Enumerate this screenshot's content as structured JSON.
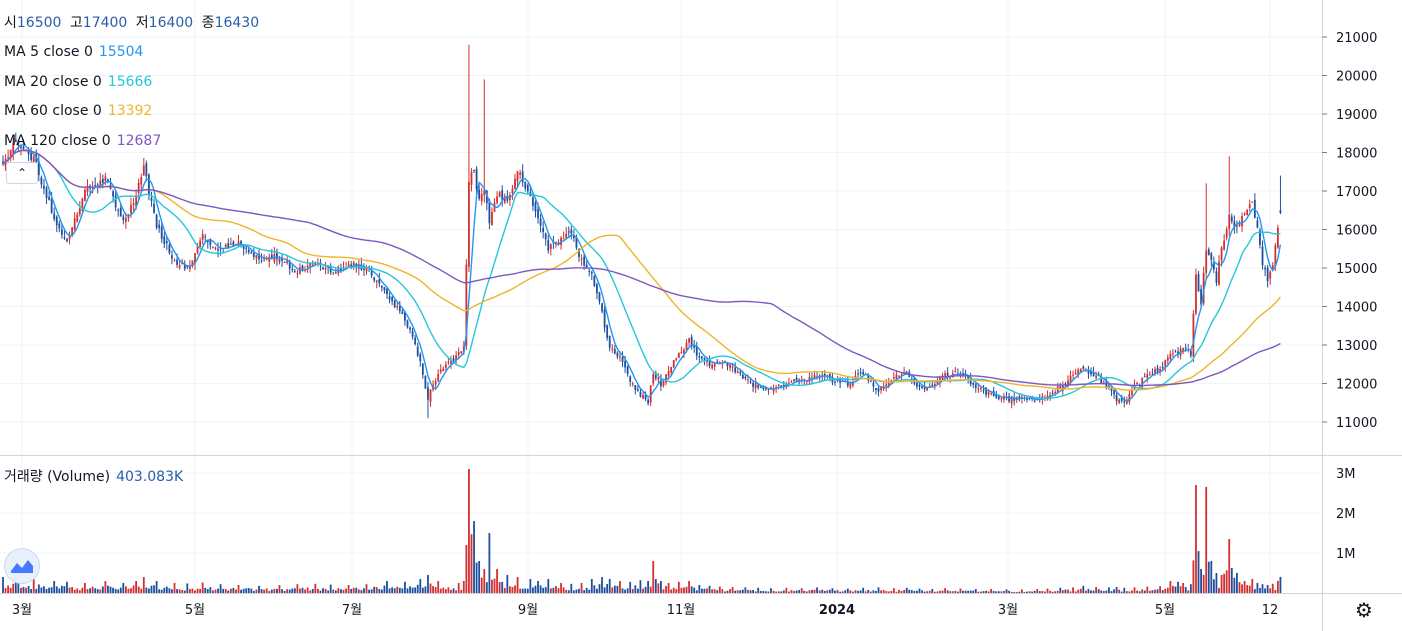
{
  "ohlc": {
    "open_label": "시",
    "open": "16500",
    "high_label": "고",
    "high": "17400",
    "low_label": "저",
    "low": "16400",
    "close_label": "종",
    "close": "16430"
  },
  "indicators": [
    {
      "label": "MA 5 close 0",
      "value": "15504",
      "color": "#2196f3"
    },
    {
      "label": "MA 20 close 0",
      "value": "15666",
      "color": "#26c6da"
    },
    {
      "label": "MA 60 close 0",
      "value": "13392",
      "color": "#f0b429"
    },
    {
      "label": "MA 120 close 0",
      "value": "12687",
      "color": "#7e57c2"
    }
  ],
  "volume_legend": {
    "label": "거래량 (Volume)",
    "value": "403.083K"
  },
  "colors": {
    "up": "#d32f2f",
    "down": "#1e4f9c",
    "grid": "#f0f3fa",
    "axis_text": "#131722"
  },
  "icons": [
    "chevron-up-icon",
    "tradingview-logo-icon",
    "gear-icon"
  ],
  "chart_data": {
    "type": "candlestick",
    "price_axis": {
      "ticks": [
        11000,
        12000,
        13000,
        14000,
        15000,
        16000,
        17000,
        18000,
        19000,
        20000,
        21000
      ]
    },
    "volume_axis": {
      "ticks": [
        "1M",
        "2M",
        "3M"
      ],
      "tick_values": [
        1000000,
        2000000,
        3000000
      ]
    },
    "time_axis": {
      "labels": [
        "3월",
        "5월",
        "7월",
        "9월",
        "11월",
        "2024",
        "3월",
        "5월",
        "12"
      ]
    },
    "keypoints": [
      [
        0,
        17700,
        400000
      ],
      [
        5,
        18300,
        500000
      ],
      [
        12,
        17800,
        350000
      ],
      [
        20,
        16300,
        300000
      ],
      [
        25,
        15700,
        280000
      ],
      [
        32,
        17000,
        250000
      ],
      [
        40,
        17300,
        300000
      ],
      [
        47,
        16200,
        250000
      ],
      [
        52,
        16900,
        300000
      ],
      [
        55,
        17600,
        400000
      ],
      [
        60,
        16100,
        300000
      ],
      [
        67,
        15200,
        250000
      ],
      [
        72,
        15000,
        240000
      ],
      [
        78,
        15800,
        260000
      ],
      [
        85,
        15500,
        220000
      ],
      [
        92,
        15600,
        200000
      ],
      [
        100,
        15200,
        180000
      ],
      [
        108,
        15300,
        200000
      ],
      [
        115,
        14900,
        220000
      ],
      [
        122,
        15200,
        230000
      ],
      [
        128,
        14900,
        210000
      ],
      [
        135,
        15100,
        200000
      ],
      [
        142,
        15000,
        220000
      ],
      [
        150,
        14300,
        300000
      ],
      [
        157,
        13700,
        280000
      ],
      [
        163,
        12600,
        350000
      ],
      [
        166,
        11600,
        450000
      ],
      [
        170,
        12300,
        300000
      ],
      [
        178,
        12800,
        250000
      ],
      [
        180,
        13000,
        300000
      ],
      [
        181,
        15100,
        1200000
      ],
      [
        182,
        17200,
        3100000
      ],
      [
        184,
        17600,
        1800000
      ],
      [
        186,
        16700,
        800000
      ],
      [
        188,
        17000,
        600000
      ],
      [
        190,
        16200,
        1500000
      ],
      [
        193,
        16900,
        600000
      ],
      [
        197,
        16800,
        450000
      ],
      [
        201,
        17500,
        400000
      ],
      [
        206,
        16900,
        350000
      ],
      [
        209,
        16300,
        300000
      ],
      [
        213,
        15500,
        350000
      ],
      [
        218,
        15800,
        250000
      ],
      [
        222,
        15900,
        230000
      ],
      [
        226,
        15200,
        250000
      ],
      [
        230,
        14800,
        350000
      ],
      [
        234,
        13800,
        400000
      ],
      [
        237,
        12900,
        350000
      ],
      [
        241,
        12700,
        300000
      ],
      [
        245,
        12100,
        280000
      ],
      [
        249,
        11700,
        320000
      ],
      [
        252,
        11500,
        300000
      ],
      [
        254,
        12300,
        800000
      ],
      [
        257,
        12000,
        300000
      ],
      [
        260,
        12400,
        250000
      ],
      [
        264,
        12800,
        280000
      ],
      [
        268,
        13100,
        300000
      ],
      [
        272,
        12700,
        200000
      ],
      [
        276,
        12500,
        180000
      ],
      [
        280,
        12600,
        160000
      ],
      [
        285,
        12400,
        150000
      ],
      [
        290,
        12100,
        140000
      ],
      [
        295,
        11900,
        130000
      ],
      [
        300,
        11900,
        120000
      ],
      [
        306,
        12000,
        130000
      ],
      [
        312,
        12100,
        120000
      ],
      [
        318,
        12200,
        140000
      ],
      [
        324,
        12100,
        120000
      ],
      [
        330,
        12000,
        110000
      ],
      [
        336,
        12300,
        130000
      ],
      [
        342,
        11800,
        140000
      ],
      [
        348,
        12200,
        120000
      ],
      [
        353,
        12300,
        130000
      ],
      [
        358,
        11900,
        110000
      ],
      [
        363,
        11900,
        100000
      ],
      [
        368,
        12200,
        120000
      ],
      [
        374,
        12300,
        110000
      ],
      [
        380,
        11900,
        100000
      ],
      [
        386,
        11700,
        100000
      ],
      [
        392,
        11600,
        90000
      ],
      [
        398,
        11600,
        90000
      ],
      [
        404,
        11600,
        100000
      ],
      [
        408,
        11700,
        110000
      ],
      [
        413,
        11900,
        130000
      ],
      [
        418,
        12200,
        140000
      ],
      [
        422,
        12400,
        180000
      ],
      [
        427,
        12200,
        150000
      ],
      [
        432,
        11900,
        140000
      ],
      [
        435,
        11600,
        150000
      ],
      [
        438,
        11500,
        130000
      ],
      [
        442,
        11900,
        140000
      ],
      [
        447,
        12200,
        160000
      ],
      [
        452,
        12400,
        170000
      ],
      [
        456,
        12700,
        300000
      ],
      [
        459,
        12800,
        280000
      ],
      [
        461,
        13000,
        250000
      ],
      [
        464,
        12800,
        220000
      ],
      [
        466,
        14800,
        2700000
      ],
      [
        468,
        14100,
        600000
      ],
      [
        470,
        15500,
        2650000
      ],
      [
        472,
        15300,
        800000
      ],
      [
        474,
        14700,
        500000
      ],
      [
        476,
        15500,
        450000
      ],
      [
        479,
        16300,
        1350000
      ],
      [
        482,
        16000,
        500000
      ],
      [
        485,
        16500,
        300000
      ],
      [
        488,
        16800,
        350000
      ],
      [
        490,
        16000,
        250000
      ],
      [
        492,
        15100,
        220000
      ],
      [
        494,
        14700,
        200000
      ],
      [
        496,
        15000,
        230000
      ],
      [
        498,
        16000,
        300000
      ],
      [
        499,
        16430,
        403083
      ]
    ],
    "last_values": {
      "ma5": 15504,
      "ma20": 15666,
      "ma60": 13392,
      "ma120": 12687
    }
  }
}
